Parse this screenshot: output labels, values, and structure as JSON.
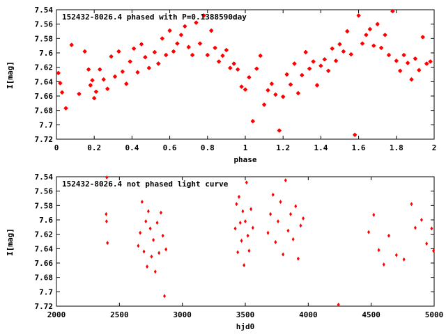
{
  "colors": {
    "points": "#ff0000",
    "axes": "#000000",
    "background": "#ffffff"
  },
  "chart_data": [
    {
      "type": "scatter",
      "title": "152432-8026.4 phased with P=0.1388590day",
      "xlabel": "phase",
      "ylabel": "I[mag]",
      "xlim": [
        0,
        2
      ],
      "ylim": [
        7.72,
        7.54
      ],
      "y_inverted": true,
      "grid": false,
      "marker": "star",
      "xticks": [
        "0",
        "0.2",
        "0.4",
        "0.6",
        "0.8",
        "1",
        "1.2",
        "1.4",
        "1.6",
        "1.8",
        "2"
      ],
      "yticks": [
        "7.54",
        "7.56",
        "7.58",
        "7.6",
        "7.62",
        "7.64",
        "7.66",
        "7.68",
        "7.7",
        "7.72"
      ],
      "series": [
        {
          "values": [
            [
              0.01,
              7.628
            ],
            [
              0.02,
              7.642
            ],
            [
              0.03,
              7.655
            ],
            [
              0.05,
              7.677
            ],
            [
              0.08,
              7.589
            ],
            [
              0.12,
              7.657
            ],
            [
              0.15,
              7.598
            ],
            [
              0.17,
              7.623
            ],
            [
              0.18,
              7.645
            ],
            [
              0.19,
              7.638
            ],
            [
              0.2,
              7.663
            ],
            [
              0.21,
              7.654
            ],
            [
              0.23,
              7.623
            ],
            [
              0.25,
              7.637
            ],
            [
              0.27,
              7.65
            ],
            [
              0.29,
              7.605
            ],
            [
              0.31,
              7.633
            ],
            [
              0.33,
              7.598
            ],
            [
              0.35,
              7.626
            ],
            [
              0.37,
              7.643
            ],
            [
              0.39,
              7.612
            ],
            [
              0.41,
              7.594
            ],
            [
              0.43,
              7.627
            ],
            [
              0.45,
              7.588
            ],
            [
              0.47,
              7.606
            ],
            [
              0.49,
              7.621
            ],
            [
              0.52,
              7.599
            ],
            [
              0.54,
              7.615
            ],
            [
              0.56,
              7.58
            ],
            [
              0.58,
              7.603
            ],
            [
              0.6,
              7.569
            ],
            [
              0.62,
              7.598
            ],
            [
              0.64,
              7.587
            ],
            [
              0.66,
              7.575
            ],
            [
              0.68,
              7.563
            ],
            [
              0.7,
              7.592
            ],
            [
              0.72,
              7.603
            ],
            [
              0.74,
              7.558
            ],
            [
              0.76,
              7.587
            ],
            [
              0.78,
              7.548
            ],
            [
              0.8,
              7.603
            ],
            [
              0.82,
              7.569
            ],
            [
              0.84,
              7.593
            ],
            [
              0.86,
              7.612
            ],
            [
              0.88,
              7.604
            ],
            [
              0.9,
              7.596
            ],
            [
              0.92,
              7.621
            ],
            [
              0.94,
              7.615
            ],
            [
              0.96,
              7.623
            ],
            [
              0.98,
              7.647
            ],
            [
              1.0,
              7.651
            ],
            [
              1.02,
              7.634
            ],
            [
              1.04,
              7.695
            ],
            [
              1.06,
              7.622
            ],
            [
              1.08,
              7.604
            ],
            [
              1.1,
              7.672
            ],
            [
              1.12,
              7.652
            ],
            [
              1.14,
              7.643
            ],
            [
              1.16,
              7.658
            ],
            [
              1.18,
              7.708
            ],
            [
              1.2,
              7.661
            ],
            [
              1.22,
              7.63
            ],
            [
              1.24,
              7.644
            ],
            [
              1.26,
              7.615
            ],
            [
              1.28,
              7.656
            ],
            [
              1.3,
              7.631
            ],
            [
              1.32,
              7.599
            ],
            [
              1.34,
              7.622
            ],
            [
              1.36,
              7.612
            ],
            [
              1.38,
              7.645
            ],
            [
              1.4,
              7.618
            ],
            [
              1.42,
              7.609
            ],
            [
              1.44,
              7.625
            ],
            [
              1.46,
              7.594
            ],
            [
              1.48,
              7.611
            ],
            [
              1.5,
              7.588
            ],
            [
              1.52,
              7.598
            ],
            [
              1.54,
              7.57
            ],
            [
              1.56,
              7.602
            ],
            [
              1.58,
              7.714
            ],
            [
              1.6,
              7.548
            ],
            [
              1.62,
              7.587
            ],
            [
              1.64,
              7.575
            ],
            [
              1.66,
              7.567
            ],
            [
              1.68,
              7.59
            ],
            [
              1.7,
              7.56
            ],
            [
              1.72,
              7.593
            ],
            [
              1.74,
              7.575
            ],
            [
              1.76,
              7.603
            ],
            [
              1.78,
              7.542
            ],
            [
              1.8,
              7.611
            ],
            [
              1.82,
              7.625
            ],
            [
              1.84,
              7.603
            ],
            [
              1.86,
              7.614
            ],
            [
              1.88,
              7.637
            ],
            [
              1.9,
              7.608
            ],
            [
              1.92,
              7.624
            ],
            [
              1.94,
              7.578
            ],
            [
              1.96,
              7.615
            ],
            [
              1.98,
              7.612
            ]
          ]
        }
      ]
    },
    {
      "type": "scatter",
      "title": "152432-8026.4 not phased light curve",
      "xlabel": "hjd0",
      "ylabel": "I[mag]",
      "xlim": [
        2000,
        5000
      ],
      "ylim": [
        7.72,
        7.54
      ],
      "y_inverted": true,
      "grid": false,
      "marker": "diamond",
      "xticks": [
        "2000",
        "2500",
        "3000",
        "3500",
        "4000",
        "4500",
        "5000"
      ],
      "yticks": [
        "7.54",
        "7.56",
        "7.58",
        "7.6",
        "7.62",
        "7.64",
        "7.66",
        "7.68",
        "7.7",
        "7.72"
      ],
      "series": [
        {
          "values": [
            [
              2395,
              7.592
            ],
            [
              2398,
              7.602
            ],
            [
              2400,
              7.541
            ],
            [
              2405,
              7.632
            ],
            [
              2650,
              7.636
            ],
            [
              2665,
              7.618
            ],
            [
              2680,
              7.575
            ],
            [
              2695,
              7.644
            ],
            [
              2710,
              7.602
            ],
            [
              2720,
              7.665
            ],
            [
              2730,
              7.588
            ],
            [
              2745,
              7.612
            ],
            [
              2755,
              7.651
            ],
            [
              2770,
              7.628
            ],
            [
              2785,
              7.672
            ],
            [
              2800,
              7.604
            ],
            [
              2815,
              7.646
            ],
            [
              2830,
              7.59
            ],
            [
              2845,
              7.622
            ],
            [
              2858,
              7.706
            ],
            [
              2870,
              7.641
            ],
            [
              3420,
              7.612
            ],
            [
              3430,
              7.578
            ],
            [
              3440,
              7.645
            ],
            [
              3450,
              7.568
            ],
            [
              3460,
              7.604
            ],
            [
              3470,
              7.629
            ],
            [
              3480,
              7.588
            ],
            [
              3490,
              7.663
            ],
            [
              3500,
              7.602
            ],
            [
              3510,
              7.548
            ],
            [
              3520,
              7.622
            ],
            [
              3530,
              7.643
            ],
            [
              3545,
              7.585
            ],
            [
              3560,
              7.611
            ],
            [
              3680,
              7.618
            ],
            [
              3700,
              7.592
            ],
            [
              3720,
              7.565
            ],
            [
              3740,
              7.631
            ],
            [
              3760,
              7.602
            ],
            [
              3780,
              7.575
            ],
            [
              3800,
              7.648
            ],
            [
              3820,
              7.545
            ],
            [
              3840,
              7.615
            ],
            [
              3860,
              7.592
            ],
            [
              3880,
              7.627
            ],
            [
              3900,
              7.581
            ],
            [
              3920,
              7.654
            ],
            [
              3940,
              7.608
            ],
            [
              3960,
              7.598
            ],
            [
              4240,
              7.718
            ],
            [
              4480,
              7.617
            ],
            [
              4520,
              7.593
            ],
            [
              4560,
              7.642
            ],
            [
              4600,
              7.662
            ],
            [
              4640,
              7.622
            ],
            [
              4700,
              7.649
            ],
            [
              4760,
              7.655
            ],
            [
              4820,
              7.578
            ],
            [
              4850,
              7.611
            ],
            [
              4900,
              7.6
            ],
            [
              4940,
              7.633
            ],
            [
              4980,
              7.612
            ],
            [
              4995,
              7.643
            ]
          ]
        }
      ]
    }
  ]
}
